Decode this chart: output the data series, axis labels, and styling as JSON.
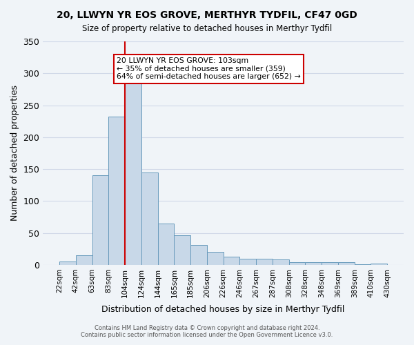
{
  "title": "20, LLWYN YR EOS GROVE, MERTHYR TYDFIL, CF47 0GD",
  "subtitle": "Size of property relative to detached houses in Merthyr Tydfil",
  "xlabel": "Distribution of detached houses by size in Merthyr Tydfil",
  "ylabel": "Number of detached properties",
  "bin_labels": [
    "22sqm",
    "42sqm",
    "63sqm",
    "83sqm",
    "104sqm",
    "124sqm",
    "144sqm",
    "165sqm",
    "185sqm",
    "206sqm",
    "226sqm",
    "246sqm",
    "267sqm",
    "287sqm",
    "308sqm",
    "328sqm",
    "348sqm",
    "369sqm",
    "389sqm",
    "410sqm",
    "430sqm"
  ],
  "bar_values": [
    5,
    15,
    140,
    232,
    287,
    145,
    65,
    46,
    31,
    20,
    13,
    10,
    10,
    8,
    4,
    4,
    4,
    4,
    1,
    2
  ],
  "bar_color": "#c8d8e8",
  "bar_edge_color": "#6699bb",
  "vline_x": 4,
  "vline_color": "#cc0000",
  "ylim": [
    0,
    350
  ],
  "yticks": [
    0,
    50,
    100,
    150,
    200,
    250,
    300,
    350
  ],
  "annotation_title": "20 LLWYN YR EOS GROVE: 103sqm",
  "annotation_line1": "← 35% of detached houses are smaller (359)",
  "annotation_line2": "64% of semi-detached houses are larger (652) →",
  "annotation_box_color": "#ffffff",
  "annotation_box_edge": "#cc0000",
  "footer_line1": "Contains HM Land Registry data © Crown copyright and database right 2024.",
  "footer_line2": "Contains public sector information licensed under the Open Government Licence v3.0.",
  "grid_color": "#d0d8e8",
  "background_color": "#f0f4f8"
}
